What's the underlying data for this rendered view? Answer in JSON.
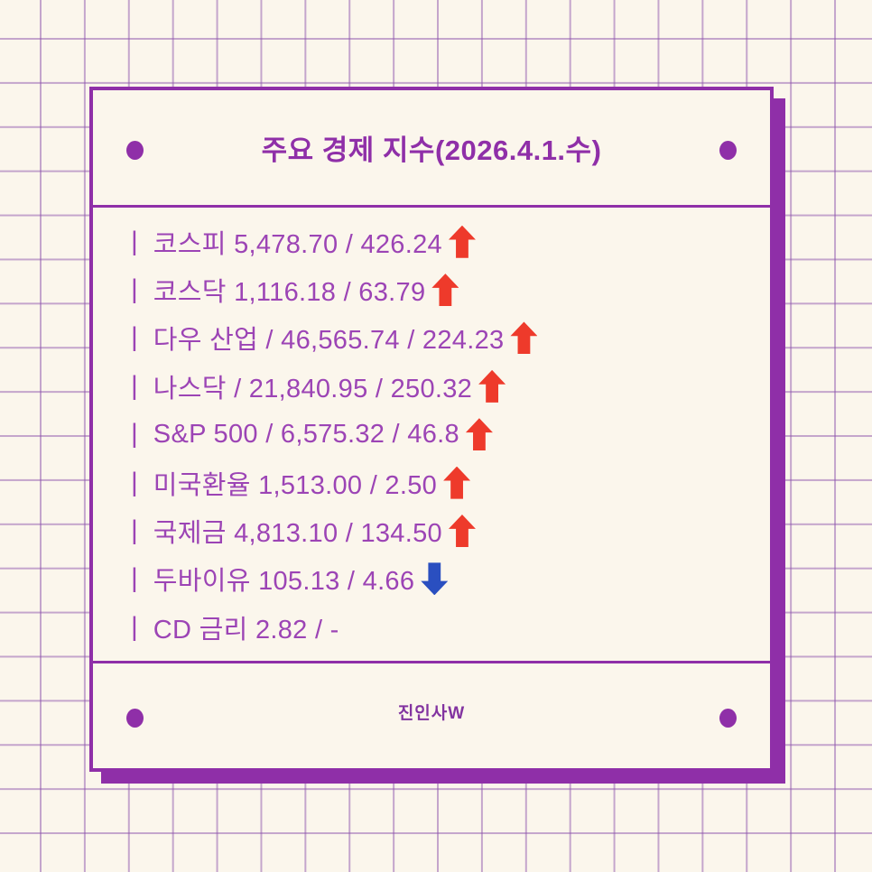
{
  "page": {
    "title": "주요 경제 지수(2026.4.1.수)",
    "footer": "진인사W",
    "bullet": "|"
  },
  "indices": [
    {
      "name": "코스피",
      "value": "5,478.70",
      "change": "426.24",
      "direction": "up",
      "line": "코스피 5,478.70 / 426.24"
    },
    {
      "name": "코스닥",
      "value": "1,116.18",
      "change": "63.79",
      "direction": "up",
      "line": "코스닥 1,116.18 / 63.79"
    },
    {
      "name": "다우 산업",
      "value": "46,565.74",
      "change": "224.23",
      "direction": "up",
      "line": "다우 산업 / 46,565.74 / 224.23"
    },
    {
      "name": "나스닥",
      "value": "21,840.95",
      "change": "250.32",
      "direction": "up",
      "line": "나스닥 / 21,840.95 / 250.32"
    },
    {
      "name": "S&P 500",
      "value": "6,575.32",
      "change": "46.8",
      "direction": "up",
      "line": "S&P 500 / 6,575.32 / 46.8"
    },
    {
      "name": "미국환율",
      "value": "1,513.00",
      "change": "2.50",
      "direction": "up",
      "line": "미국환율 1,513.00 / 2.50"
    },
    {
      "name": "국제금",
      "value": "4,813.10",
      "change": "134.50",
      "direction": "up",
      "line": "국제금 4,813.10 / 134.50"
    },
    {
      "name": "두바이유",
      "value": "105.13",
      "change": "4.66",
      "direction": "down",
      "line": "두바이유 105.13 / 4.66"
    },
    {
      "name": "CD 금리",
      "value": "2.82",
      "change": "-",
      "direction": "none",
      "line": "CD 금리 2.82 / -"
    }
  ],
  "colors": {
    "accent_purple": "#8F2FA8",
    "text_purple": "#9C44B5",
    "up_arrow_red": "#EE3A2B",
    "down_arrow_blue": "#2A4FC0",
    "background_cream": "#FBF6EC"
  }
}
